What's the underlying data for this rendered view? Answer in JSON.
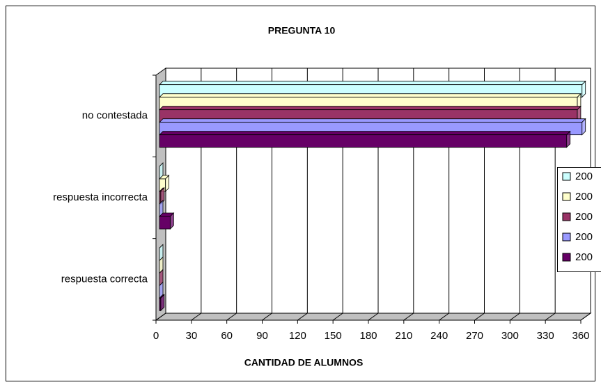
{
  "chart_data": {
    "type": "bar3d_horizontal",
    "title": "PREGUNTA 10",
    "x_label": "CANTIDAD DE ALUMNOS",
    "categories": [
      "no contestada",
      "respuesta incorrecta",
      "respuesta correcta"
    ],
    "series": [
      {
        "name": "200",
        "color": "#ccffff",
        "values": [
          361,
          1,
          2
        ]
      },
      {
        "name": "200",
        "color": "#ffffcc",
        "values": [
          357,
          8,
          1
        ]
      },
      {
        "name": "200",
        "color": "#993366",
        "values": [
          357,
          4,
          2
        ]
      },
      {
        "name": "200",
        "color": "#9999ff",
        "values": [
          361,
          2,
          1
        ]
      },
      {
        "name": "200",
        "color": "#660066",
        "values": [
          348,
          12,
          4
        ]
      }
    ],
    "xlim": [
      0,
      360
    ],
    "xticks": [
      0,
      30,
      60,
      90,
      120,
      150,
      180,
      210,
      240,
      270,
      300,
      330,
      360
    ],
    "grid": true
  }
}
